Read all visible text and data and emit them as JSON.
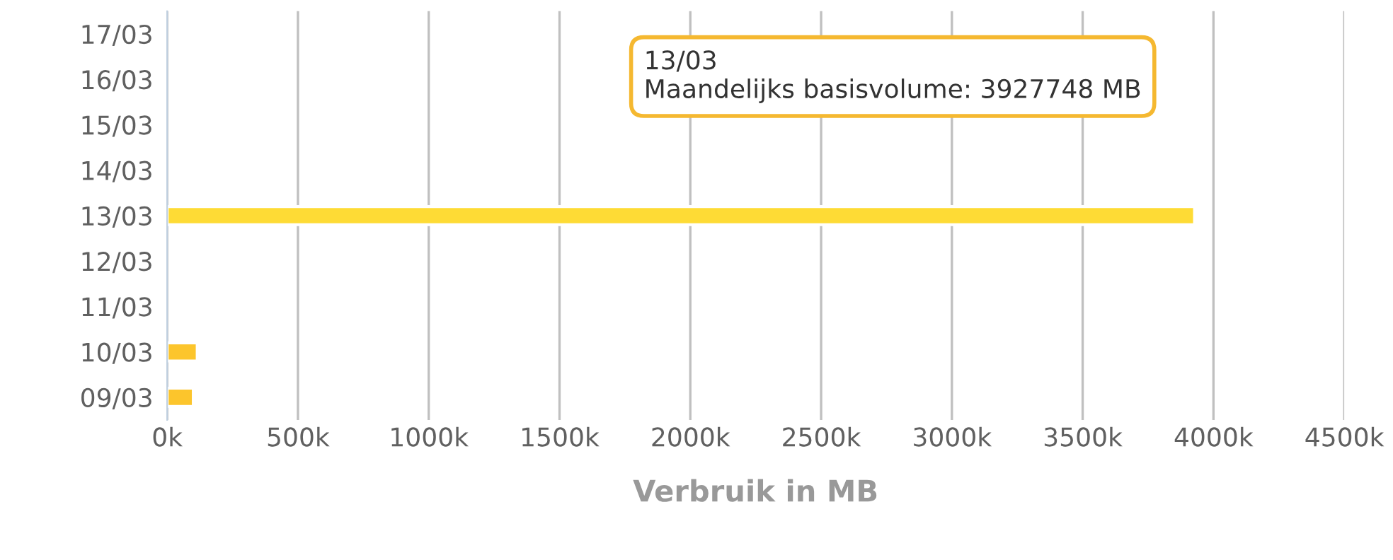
{
  "chart_data": {
    "type": "bar",
    "orientation": "horizontal",
    "categories": [
      "17/03",
      "16/03",
      "15/03",
      "14/03",
      "13/03",
      "12/03",
      "11/03",
      "10/03",
      "09/03"
    ],
    "values": [
      null,
      null,
      null,
      null,
      3927748,
      null,
      null,
      115000,
      100000
    ],
    "colors": [
      "#fcc52c",
      "#fcc52c",
      "#fcc52c",
      "#fcc52c",
      "#fedb35",
      "#fcc52c",
      "#fcc52c",
      "#fcc52c",
      "#fcc52c"
    ],
    "xlabel": "Verbruik in MB",
    "xlim": [
      0,
      4500000
    ],
    "xticks": [
      {
        "value": 0,
        "label": "0k"
      },
      {
        "value": 500000,
        "label": "500k"
      },
      {
        "value": 1000000,
        "label": "1000k"
      },
      {
        "value": 1500000,
        "label": "1500k"
      },
      {
        "value": 2000000,
        "label": "2000k"
      },
      {
        "value": 2500000,
        "label": "2500k"
      },
      {
        "value": 3000000,
        "label": "3000k"
      },
      {
        "value": 3500000,
        "label": "3500k"
      },
      {
        "value": 4000000,
        "label": "4000k"
      },
      {
        "value": 4500000,
        "label": "4500k"
      }
    ],
    "grid": "x",
    "annotations": [
      "13/03\nMaandelijks basisvolume: 3927748 MB"
    ]
  }
}
